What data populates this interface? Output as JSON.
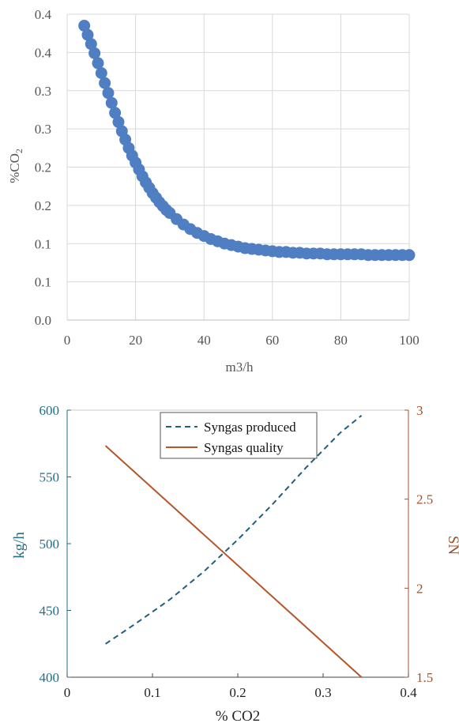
{
  "chart_data": [
    {
      "type": "scatter",
      "xlabel": "m3/h",
      "ylabel": "%CO",
      "ylabel_sub": "2",
      "xlim": [
        0,
        100
      ],
      "ylim": [
        0.0,
        0.4
      ],
      "x_ticks": [
        0,
        20,
        40,
        60,
        80,
        100
      ],
      "x_tick_labels": [
        "0",
        "20",
        "40",
        "60",
        "80",
        "100"
      ],
      "y_ticks": [
        0.0,
        0.05,
        0.1,
        0.15,
        0.2,
        0.25,
        0.3,
        0.35,
        0.4
      ],
      "y_tick_labels": [
        "0.0",
        "0.1",
        "0.1",
        "0.2",
        "0.2",
        "0.3",
        "0.3",
        "0.4",
        "0.4"
      ],
      "grid": true,
      "color": "#4f7fc2",
      "x": [
        5,
        6,
        7,
        8,
        9,
        10,
        11,
        12,
        13,
        14,
        15,
        16,
        17,
        18,
        19,
        20,
        21,
        22,
        23,
        24,
        25,
        26,
        27,
        28,
        29,
        30,
        32,
        34,
        36,
        38,
        40,
        42,
        44,
        46,
        48,
        50,
        52,
        54,
        56,
        58,
        60,
        62,
        64,
        66,
        68,
        70,
        72,
        74,
        76,
        78,
        80,
        82,
        84,
        86,
        88,
        90,
        92,
        94,
        96,
        98,
        100
      ],
      "y": [
        0.385,
        0.373,
        0.361,
        0.349,
        0.336,
        0.323,
        0.31,
        0.297,
        0.284,
        0.271,
        0.259,
        0.247,
        0.236,
        0.225,
        0.215,
        0.206,
        0.197,
        0.188,
        0.18,
        0.173,
        0.166,
        0.16,
        0.154,
        0.149,
        0.144,
        0.14,
        0.132,
        0.125,
        0.119,
        0.114,
        0.11,
        0.106,
        0.103,
        0.1,
        0.098,
        0.096,
        0.094,
        0.093,
        0.092,
        0.091,
        0.09,
        0.089,
        0.089,
        0.088,
        0.088,
        0.087,
        0.087,
        0.087,
        0.086,
        0.086,
        0.086,
        0.086,
        0.086,
        0.086,
        0.085,
        0.085,
        0.085,
        0.085,
        0.085,
        0.085,
        0.085
      ]
    },
    {
      "type": "line",
      "xlabel": "% CO2",
      "ylabel": "kg/h",
      "ylabel_right": "SN",
      "xlim": [
        0,
        0.4
      ],
      "ylim": [
        400,
        600
      ],
      "ylim_right": [
        1.5,
        3
      ],
      "x_ticks": [
        0,
        0.1,
        0.2,
        0.3,
        0.4
      ],
      "x_tick_labels": [
        "0",
        "0.1",
        "0.2",
        "0.3",
        "0.4"
      ],
      "y_ticks": [
        400,
        450,
        500,
        550,
        600
      ],
      "y_tick_labels": [
        "400",
        "450",
        "500",
        "550",
        "600"
      ],
      "y_ticks_right": [
        1.5,
        2,
        2.5,
        3
      ],
      "y_tick_labels_right": [
        "1.5",
        "2",
        "2.5",
        "3"
      ],
      "left_axis_color": "#1f6e8c",
      "right_axis_color": "#a0522d",
      "legend_position": "top-center",
      "series": [
        {
          "name": "Syngas produced",
          "axis": "left",
          "style": "dashed",
          "color": "#1f5f7f",
          "x": [
            0.045,
            0.08,
            0.12,
            0.16,
            0.2,
            0.24,
            0.28,
            0.32,
            0.345
          ],
          "y": [
            425,
            440,
            458,
            479,
            503,
            529,
            557,
            583,
            596
          ]
        },
        {
          "name": "Syngas quality",
          "axis": "right",
          "style": "solid",
          "color": "#b5562a",
          "x": [
            0.045,
            0.345
          ],
          "y": [
            2.8,
            1.5
          ]
        }
      ]
    }
  ]
}
